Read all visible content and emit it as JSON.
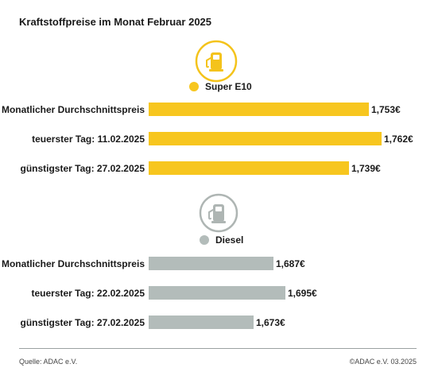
{
  "title": "Kraftstoffpreise im Monat Februar 2025",
  "colors": {
    "super": "#f7c61f",
    "diesel": "#b3bcba",
    "super_icon": "#f4c31b",
    "diesel_icon": "#aeb5b3"
  },
  "chart_data": [
    {
      "type": "bar",
      "orientation": "horizontal",
      "series_label": "Super E10",
      "icon": "fuel-pump-icon",
      "categories": [
        "Monatlicher Durchschnittspreis",
        "teuerster Tag: 11.02.2025",
        "günstigster Tag: 27.02.2025"
      ],
      "values": [
        1.753,
        1.762,
        1.739
      ],
      "value_labels": [
        "1,753€",
        "1,762€",
        "1,739€"
      ]
    },
    {
      "type": "bar",
      "orientation": "horizontal",
      "series_label": "Diesel",
      "icon": "fuel-pump-icon",
      "categories": [
        "Monatlicher Durchschnittspreis",
        "teuerster Tag: 22.02.2025",
        "günstigster Tag: 27.02.2025"
      ],
      "values": [
        1.687,
        1.695,
        1.673
      ],
      "value_labels": [
        "1,687€",
        "1,695€",
        "1,673€"
      ]
    }
  ],
  "footer": {
    "source": "Quelle: ADAC e.V.",
    "copyright": "©ADAC e.V. 03.2025"
  }
}
